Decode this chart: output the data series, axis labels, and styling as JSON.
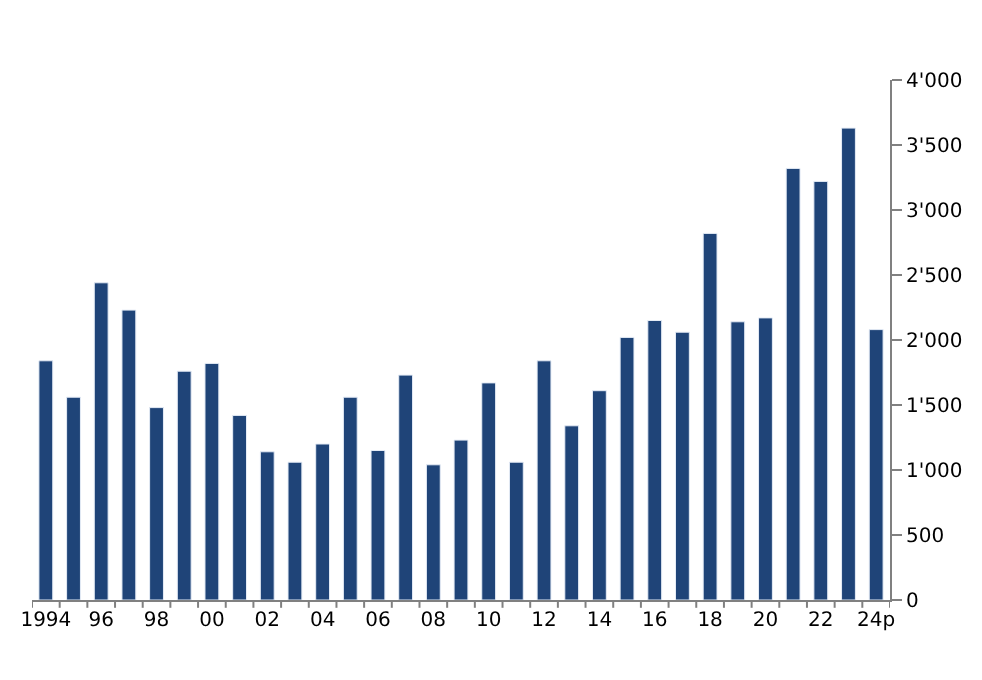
{
  "chart_data": {
    "type": "bar",
    "categories": [
      "1994",
      null,
      "96",
      null,
      "98",
      null,
      "00",
      null,
      "02",
      null,
      "04",
      null,
      "06",
      null,
      "08",
      null,
      "10",
      null,
      "12",
      null,
      "14",
      null,
      "16",
      null,
      "18",
      null,
      "20",
      null,
      "22",
      null,
      "24p"
    ],
    "values": [
      1840,
      1560,
      2440,
      2230,
      1480,
      1760,
      1820,
      1420,
      1140,
      1060,
      1200,
      1560,
      1150,
      1730,
      1040,
      1230,
      1670,
      1060,
      1840,
      1340,
      1610,
      2020,
      2150,
      2060,
      2820,
      2140,
      2170,
      3320,
      3220,
      3630,
      2080
    ],
    "color": "#1f4478",
    "ylim": [
      0,
      4000
    ],
    "yticks": [
      0,
      500,
      {
        "value": 1000,
        "label": "1'000"
      },
      {
        "value": 1500,
        "label": "1'500"
      },
      {
        "value": 2000,
        "label": "2'000"
      },
      {
        "value": 2500,
        "label": "2'500"
      },
      {
        "value": 3000,
        "label": "3'000"
      },
      {
        "value": 3500,
        "label": "3'500"
      },
      {
        "value": 4000,
        "label": "4'000"
      }
    ],
    "legend": false
  }
}
